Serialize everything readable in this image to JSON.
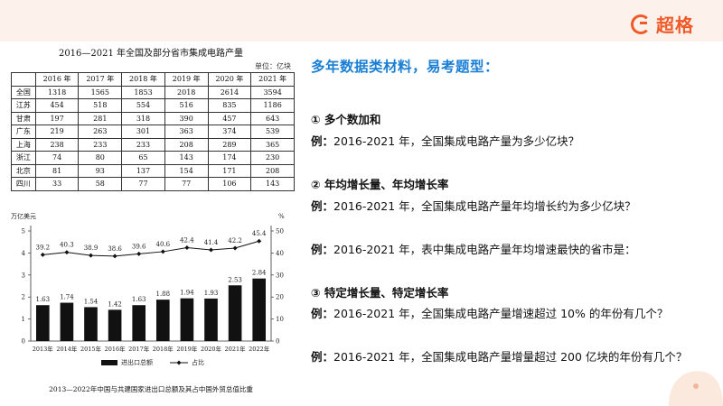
{
  "brand": {
    "name": "超格",
    "color": "#f05a28"
  },
  "table": {
    "title": "2016—2021 年全国及部分省市集成电路产量",
    "unit": "单位：亿块",
    "columns": [
      "",
      "2016 年",
      "2017 年",
      "2018 年",
      "2019 年",
      "2020 年",
      "2021 年"
    ],
    "rows": [
      [
        "全国",
        "1318",
        "1565",
        "1853",
        "2018",
        "2614",
        "3594"
      ],
      [
        "江苏",
        "454",
        "518",
        "554",
        "516",
        "835",
        "1186"
      ],
      [
        "甘肃",
        "197",
        "281",
        "318",
        "390",
        "457",
        "643"
      ],
      [
        "广东",
        "219",
        "263",
        "301",
        "363",
        "374",
        "539"
      ],
      [
        "上海",
        "238",
        "233",
        "233",
        "208",
        "289",
        "365"
      ],
      [
        "浙江",
        "74",
        "80",
        "65",
        "143",
        "174",
        "230"
      ],
      [
        "北京",
        "81",
        "93",
        "137",
        "154",
        "171",
        "208"
      ],
      [
        "四川",
        "33",
        "58",
        "77",
        "77",
        "106",
        "143"
      ]
    ]
  },
  "chart_data": {
    "type": "bar",
    "title": "2013—2022年中国与共建国家进出口总额及其占中国外贸总值比重",
    "ylabel_left": "万亿美元",
    "ylabel_right": "%",
    "categories": [
      "2013年",
      "2014年",
      "2015年",
      "2016年",
      "2017年",
      "2018年",
      "2019年",
      "2020年",
      "2021年",
      "2022年"
    ],
    "ylim_left": [
      0,
      5
    ],
    "ylim_right": [
      0,
      50
    ],
    "left_ticks": [
      "0",
      "1",
      "2",
      "3",
      "4",
      "5"
    ],
    "right_ticks": [
      "0",
      "10",
      "20",
      "30",
      "40",
      "50"
    ],
    "series": [
      {
        "name": "进出口总额",
        "type": "bar",
        "axis": "left",
        "values": [
          1.63,
          1.74,
          1.54,
          1.42,
          1.63,
          1.88,
          1.94,
          1.93,
          2.53,
          2.84
        ]
      },
      {
        "name": "占比",
        "type": "line",
        "axis": "right",
        "values": [
          39.2,
          40.3,
          38.9,
          38.6,
          39.6,
          40.6,
          42.4,
          41.4,
          42.2,
          45.4
        ]
      }
    ],
    "bar_labels": [
      "1.63",
      "1.74",
      "1.54",
      "1.42",
      "1.63",
      "1.88",
      "1.94",
      "1.93",
      "2.53",
      "2.84"
    ],
    "line_labels": [
      "39.2",
      "40.3",
      "38.9",
      "38.6",
      "39.6",
      "40.6",
      "42.4",
      "41.4",
      "42.2",
      "45.4"
    ],
    "legend_placement": "bottom",
    "grid": false
  },
  "content": {
    "heading": "多年数据类材料，易考题型：",
    "sections": [
      {
        "title": "① 多个数加和",
        "examples": [
          "2016-2021 年，全国集成电路产量为多少亿块？"
        ]
      },
      {
        "title": "② 年均增长量、年均增长率",
        "examples": [
          "2016-2021 年，全国集成电路产量年均增长约为多少亿块？",
          "2016-2021 年，表中集成电路产量年均增速最快的省市是："
        ]
      },
      {
        "title": "③ 特定增长量、特定增长率",
        "examples": [
          "2016-2021 年，全国集成电路产量增速超过 10% 的年份有几个？",
          "2016-2021 年，全国集成电路产量增量超过 200 亿块的年份有几个？"
        ]
      }
    ],
    "example_prefix": "例："
  }
}
